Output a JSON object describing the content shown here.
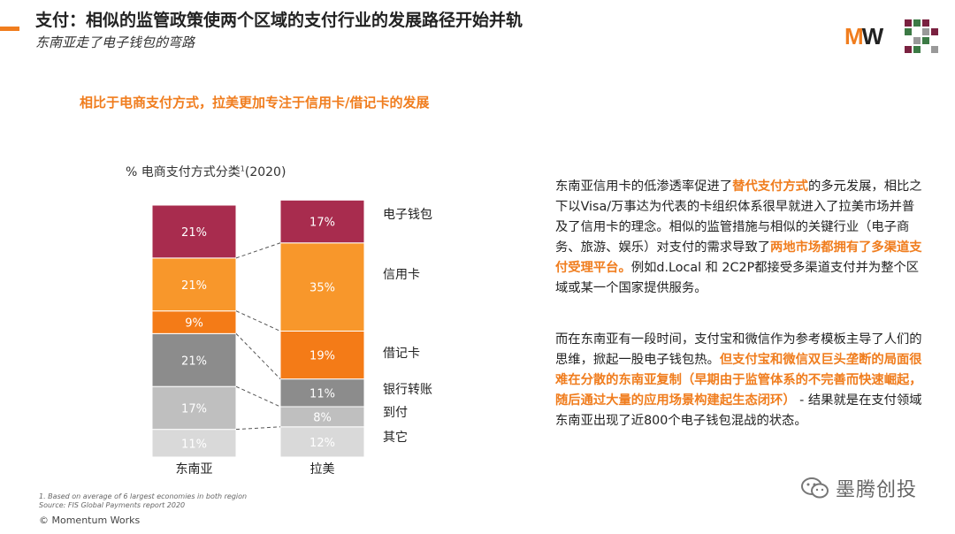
{
  "header": {
    "title": "支付：相似的监管政策使两个区域的支付行业的发展路径开始并轨",
    "subtitle": "东南亚走了电子钱包的弯路",
    "logo_text": "MW"
  },
  "headline": "相比于电商支付方式，拉美更加专注于信用卡/借记卡的发展",
  "chart_title": "% 电商支付方式分类",
  "chart_title_sup": "1",
  "chart_title_year": "(2020)",
  "chart_data": {
    "type": "bar",
    "stacked": true,
    "title": "% 电商支付方式分类¹(2020)",
    "categories": [
      "东南亚",
      "拉美"
    ],
    "series": [
      {
        "name": "其它",
        "values": [
          11,
          12
        ],
        "color": "#d9d9d9"
      },
      {
        "name": "到付",
        "values": [
          17,
          8
        ],
        "color": "#bfbfbf"
      },
      {
        "name": "银行转账",
        "values": [
          21,
          11
        ],
        "color": "#8c8c8c"
      },
      {
        "name": "借记卡",
        "values": [
          9,
          19
        ],
        "color": "#f47b17"
      },
      {
        "name": "信用卡",
        "values": [
          21,
          35
        ],
        "color": "#f8972b"
      },
      {
        "name": "电子钱包",
        "values": [
          21,
          17
        ],
        "color": "#a82c4e"
      }
    ],
    "value_labels": [
      [
        "11%",
        "17%",
        "21%",
        "9%",
        "21%",
        "21%"
      ],
      [
        "12%",
        "8%",
        "11%",
        "19%",
        "35%",
        "17%"
      ]
    ],
    "ylim": [
      0,
      100
    ],
    "xlabel": "",
    "ylabel": ""
  },
  "body": {
    "p1_a": "东南亚信用卡的低渗透率促进了",
    "p1_b": "替代支付方式",
    "p1_c": "的多元发展，相比之下以Visa/万事达为代表的卡组织体系很早就进入了拉美市场并普及了信用卡的理念。相似的监管措施与相似的关键行业（电子商务、旅游、娱乐）对支付的需求导致了",
    "p1_d": "两地市场都拥有了多渠道支付受理平台。",
    "p1_e": "例如d.Local 和 2C2P都接受多渠道支付并为整个区域或某一个国家提供服务。",
    "p2_a": "而在东南亚有一段时间，支付宝和微信作为参考模板主导了人们的思维，掀起一股电子钱包热。",
    "p2_b": "但支付宝和微信双巨头垄断的局面很难在分散的东南亚复制（早期由于监管体系的不完善而快速崛起，随后通过大量的应用场景构建起生态闭环）",
    "p2_c": " - 结果就是在支付领域东南亚出现了近800个电子钱包混战的状态。"
  },
  "footnotes": {
    "fn1": "1. Based on average of 6 largest economies in both region",
    "fn2": "Source: FIS Global Payments report 2020"
  },
  "copyright": "© Momentum Works",
  "watermark": "墨腾创投"
}
